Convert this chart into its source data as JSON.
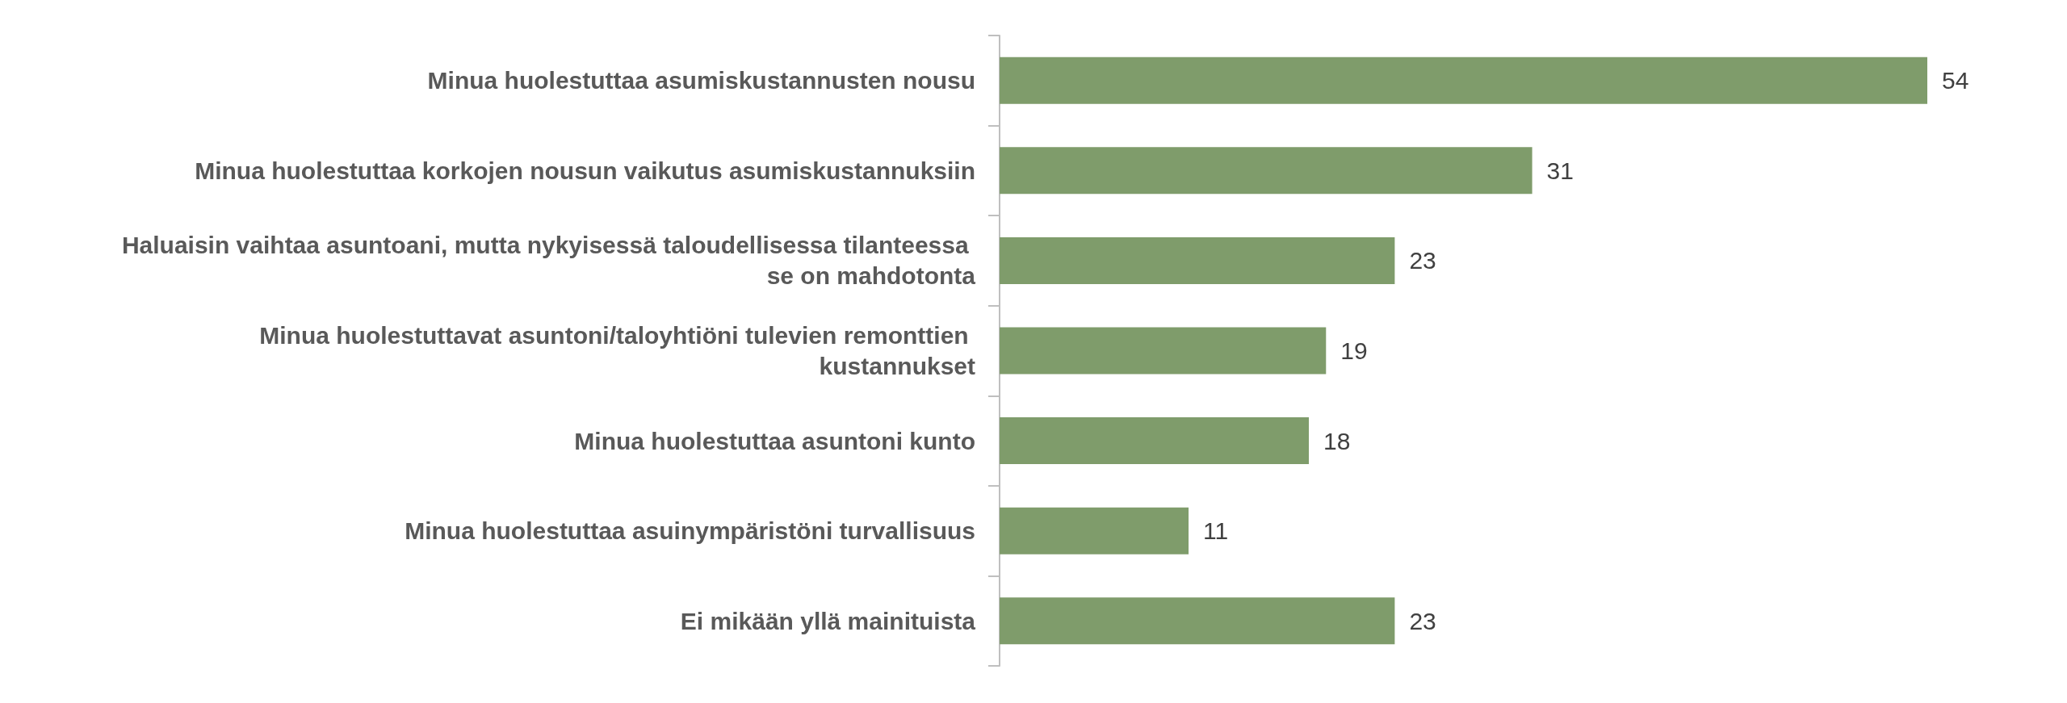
{
  "chart_data": {
    "type": "bar",
    "orientation": "horizontal",
    "categories": [
      "Minua huolestuttaa asumiskustannusten nousu",
      "Minua huolestuttaa korkojen nousun vaikutus asumiskustannuksiin",
      "Haluaisin vaihtaa asuntoani, mutta nykyisessä taloudellisessa tilanteessa se on mahdotonta",
      "Minua huolestuttavat asuntoni/taloyhtiöni tulevien remonttien kustannukset",
      "Minua huolestuttaa asuntoni kunto",
      "Minua huolestuttaa asuinympäristöni turvallisuus",
      "Ei mikään yllä mainituista"
    ],
    "values": [
      54,
      31,
      23,
      19,
      18,
      11,
      23
    ],
    "color": "#7f9c6b",
    "data_labels": true
  }
}
